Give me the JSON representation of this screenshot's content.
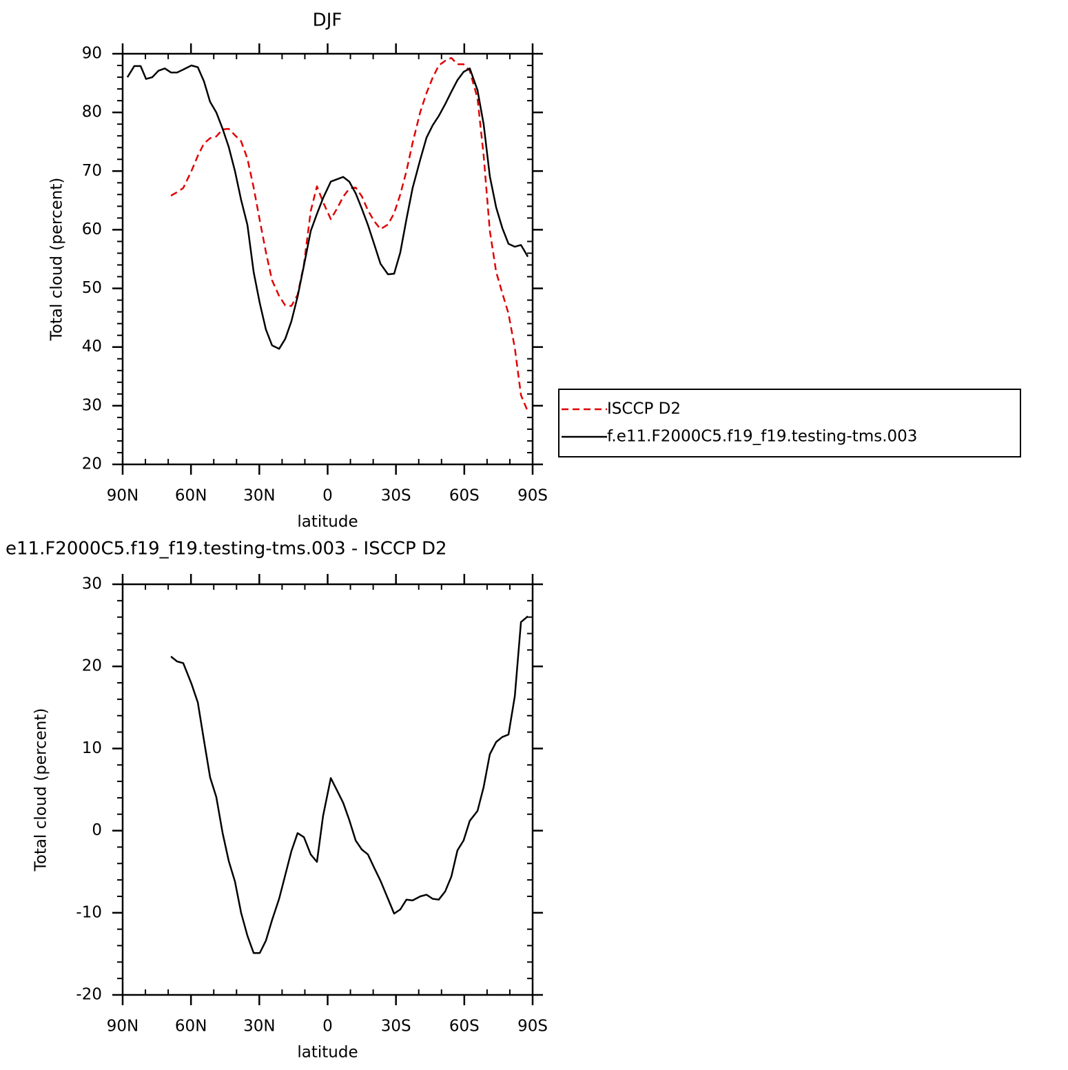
{
  "chart_data": [
    {
      "type": "line",
      "title": "DJF",
      "xlabel": "latitude",
      "ylabel": "Total cloud (percent)",
      "x": [
        87.9,
        84.9,
        82.1,
        79.7,
        77.0,
        74.3,
        71.5,
        68.8,
        66.1,
        63.4,
        59.8,
        57.0,
        54.3,
        51.6,
        48.9,
        46.1,
        43.4,
        40.7,
        38.0,
        35.2,
        32.5,
        29.8,
        27.1,
        24.4,
        21.3,
        18.6,
        15.9,
        13.2,
        10.4,
        7.4,
        4.7,
        2.0,
        -1.4,
        -4.1,
        -6.8,
        -9.5,
        -12.3,
        -15.0,
        -17.7,
        -20.4,
        -23.2,
        -26.5,
        -29.2,
        -31.9,
        -34.6,
        -37.3,
        -40.7,
        -43.4,
        -46.1,
        -48.8,
        -51.6,
        -54.3,
        -57.0,
        -59.7,
        -62.4,
        -65.8,
        -68.5,
        -71.2,
        -74.0,
        -76.7,
        -79.4,
        -82.2,
        -84.9,
        -87.9
      ],
      "series": [
        {
          "name": "ISCCP D2",
          "color": "#e00000",
          "line_style": "dashed",
          "values": [
            null,
            null,
            null,
            null,
            null,
            null,
            null,
            65.8,
            66.4,
            67.1,
            70.0,
            72.6,
            74.7,
            75.6,
            75.9,
            77.1,
            77.2,
            76.1,
            75.1,
            72.1,
            67.2,
            61.6,
            56.2,
            51.4,
            48.7,
            47.1,
            47.0,
            48.9,
            54.1,
            63.2,
            67.4,
            64.7,
            61.8,
            63.6,
            65.6,
            67.0,
            67.2,
            65.7,
            63.3,
            61.5,
            60.1,
            60.9,
            62.8,
            66.0,
            70.0,
            74.8,
            80.1,
            83.3,
            85.9,
            88.0,
            88.8,
            89.3,
            88.2,
            88.2,
            87.1,
            82.4,
            72.7,
            59.8,
            52.8,
            49.2,
            45.7,
            39.8,
            31.8,
            29.0
          ]
        },
        {
          "name": "f.e11.F2000C5.f19_f19.testing-tms.003",
          "color": "#000000",
          "line_style": "solid",
          "values": [
            86.0,
            87.9,
            87.9,
            85.7,
            86.0,
            87.1,
            87.5,
            86.8,
            86.8,
            87.3,
            88.0,
            87.7,
            85.3,
            81.8,
            80.0,
            77.2,
            74.1,
            70.0,
            65.1,
            60.8,
            52.8,
            47.5,
            43.0,
            40.3,
            39.7,
            41.4,
            44.4,
            48.6,
            53.9,
            59.8,
            62.7,
            65.4,
            68.2,
            68.6,
            69.0,
            68.2,
            66.2,
            63.6,
            60.8,
            57.6,
            54.2,
            52.4,
            52.5,
            56.1,
            61.8,
            67.1,
            72.0,
            75.7,
            77.8,
            79.4,
            81.4,
            83.5,
            85.5,
            86.9,
            87.5,
            83.8,
            78.0,
            69.1,
            63.8,
            60.3,
            57.6,
            57.1,
            57.4,
            55.4
          ]
        }
      ],
      "xlim": [
        90,
        -90
      ],
      "xticks": [
        {
          "value": 90,
          "label": "90N"
        },
        {
          "value": 60,
          "label": "60N"
        },
        {
          "value": 30,
          "label": "30N"
        },
        0,
        {
          "value": -30,
          "label": "30S"
        },
        {
          "value": -60,
          "label": "60S"
        },
        {
          "value": -90,
          "label": "90S"
        }
      ],
      "ylim": [
        20,
        90
      ],
      "yticks": [
        20,
        30,
        40,
        50,
        60,
        70,
        80,
        90
      ],
      "legend": "right"
    },
    {
      "type": "line",
      "title": "e11.F2000C5.f19_f19.testing-tms.003 - ISCCP D2",
      "xlabel": "latitude",
      "ylabel": "Total cloud (percent)",
      "x": [
        87.9,
        84.9,
        82.1,
        79.7,
        77.0,
        74.3,
        71.5,
        68.8,
        66.1,
        63.4,
        59.8,
        57.0,
        54.3,
        51.6,
        48.9,
        46.1,
        43.4,
        40.7,
        38.0,
        35.2,
        32.5,
        29.8,
        27.1,
        24.4,
        21.3,
        18.6,
        15.9,
        13.2,
        10.4,
        7.4,
        4.7,
        2.0,
        -1.4,
        -4.1,
        -6.8,
        -9.5,
        -12.3,
        -15.0,
        -17.7,
        -20.4,
        -23.2,
        -26.5,
        -29.2,
        -31.9,
        -34.6,
        -37.3,
        -40.7,
        -43.4,
        -46.1,
        -48.8,
        -51.6,
        -54.3,
        -57.0,
        -59.7,
        -62.4,
        -65.8,
        -68.5,
        -71.2,
        -74.0,
        -76.7,
        -79.4,
        -82.2,
        -84.9,
        -87.9
      ],
      "color": "#000000",
      "values": [
        null,
        null,
        null,
        null,
        null,
        null,
        null,
        21.2,
        20.6,
        20.4,
        17.9,
        15.6,
        11.0,
        6.5,
        4.1,
        -0.3,
        -3.7,
        -6.2,
        -10.0,
        -12.8,
        -14.9,
        -14.9,
        -13.4,
        -10.9,
        -8.3,
        -5.4,
        -2.5,
        -0.3,
        -0.8,
        -2.9,
        -3.8,
        1.8,
        6.4,
        4.9,
        3.4,
        1.3,
        -1.2,
        -2.3,
        -2.9,
        -4.5,
        -6.1,
        -8.3,
        -10.1,
        -9.6,
        -8.4,
        -8.5,
        -8.0,
        -7.8,
        -8.3,
        -8.4,
        -7.4,
        -5.6,
        -2.4,
        -1.2,
        1.2,
        2.4,
        5.3,
        9.3,
        10.8,
        11.4,
        11.7,
        16.4,
        25.4,
        26.1
      ],
      "xlim": [
        90,
        -90
      ],
      "xticks": [
        {
          "value": 90,
          "label": "90N"
        },
        {
          "value": 60,
          "label": "60N"
        },
        {
          "value": 30,
          "label": "30N"
        },
        0,
        {
          "value": -30,
          "label": "30S"
        },
        {
          "value": -60,
          "label": "60S"
        },
        {
          "value": -90,
          "label": "90S"
        }
      ],
      "ylim": [
        -20,
        30
      ],
      "yticks": [
        -20,
        -10,
        0,
        10,
        20,
        30
      ]
    }
  ]
}
